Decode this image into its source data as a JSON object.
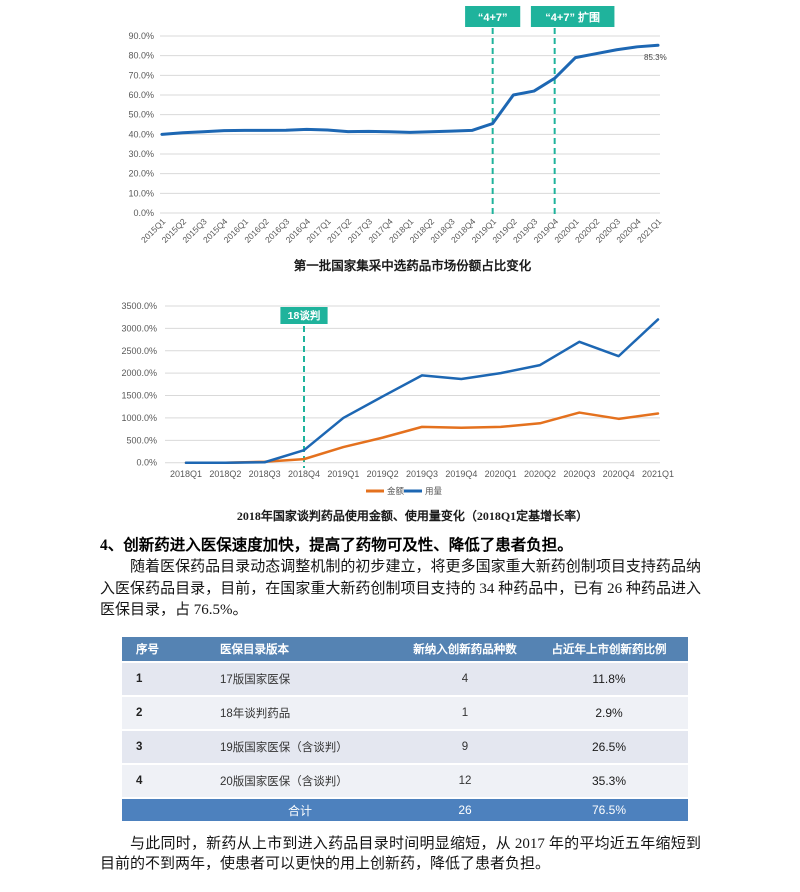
{
  "colors": {
    "accent_green": "#1fb39c",
    "line_blue": "#1d67b3",
    "line_orange": "#e4711e",
    "grid": "#d9d9d9",
    "axis_text": "#595959",
    "table_header_bg": "#5583b3",
    "table_total_bg": "#4d81be",
    "row_odd": "#e4e7f0",
    "row_even": "#eff1f6"
  },
  "chart_data": [
    {
      "type": "line",
      "title": "第一批国家集采中选药品市场份额占比变化",
      "categories": [
        "2015Q1",
        "2015Q2",
        "2015Q3",
        "2015Q4",
        "2016Q1",
        "2016Q2",
        "2016Q3",
        "2016Q4",
        "2017Q1",
        "2017Q2",
        "2017Q3",
        "2017Q4",
        "2018Q1",
        "2018Q2",
        "2018Q3",
        "2018Q4",
        "2019Q1",
        "2019Q2",
        "2019Q3",
        "2019Q4",
        "2020Q1",
        "2020Q2",
        "2020Q3",
        "2020Q4",
        "2021Q1"
      ],
      "series": [
        {
          "name": "中选药品市场份额",
          "color": "#1d67b3",
          "values": [
            40.0,
            40.8,
            41.3,
            41.9,
            42.0,
            42.0,
            42.1,
            42.5,
            42.2,
            41.4,
            41.5,
            41.3,
            41.0,
            41.3,
            41.6,
            42.0,
            45.5,
            60.0,
            62.0,
            68.5,
            79.0,
            81.0,
            83.0,
            84.5,
            85.3
          ]
        }
      ],
      "ylim": [
        0,
        90
      ],
      "ytick_step": 10,
      "grid": true,
      "legend": "none",
      "end_label": "85.3%",
      "annotations": [
        {
          "label": "“4+7”",
          "at": "2019Q1"
        },
        {
          "label": "“4+7” 扩围",
          "at": "2019Q4"
        }
      ]
    },
    {
      "type": "line",
      "title": "2018年国家谈判药品使用金额、使用量变化（2018Q1定基增长率）",
      "categories": [
        "2018Q1",
        "2018Q2",
        "2018Q3",
        "2018Q4",
        "2019Q1",
        "2019Q2",
        "2019Q3",
        "2019Q4",
        "2020Q1",
        "2020Q2",
        "2020Q3",
        "2020Q4",
        "2021Q1"
      ],
      "series": [
        {
          "name": "金额",
          "color": "#e4711e",
          "values": [
            0,
            0,
            20,
            80,
            350,
            560,
            800,
            780,
            800,
            880,
            1120,
            980,
            1100
          ]
        },
        {
          "name": "用量",
          "color": "#1d67b3",
          "values": [
            0,
            0,
            10,
            280,
            1000,
            1480,
            1950,
            1870,
            2000,
            2180,
            2700,
            2380,
            3200
          ]
        }
      ],
      "ylim": [
        0,
        3500
      ],
      "ytick_step": 500,
      "grid": true,
      "legend": "bottom",
      "annotations": [
        {
          "label": "18谈判",
          "at": "2018Q4"
        }
      ]
    }
  ],
  "section": {
    "heading": "4、创新药进入医保速度加快，提高了药物可及性、降低了患者负担。",
    "paragraph1": "随着医保药品目录动态调整机制的初步建立，将更多国家重大新药创制项目支持药品纳入医保药品目录，目前，在国家重大新药创制项目支持的 34 种药品中，已有 26 种药品进入医保目录，占 76.5%。",
    "paragraph2": "与此同时，新药从上市到进入药品目录时间明显缩短，从 2017 年的平均近五年缩短到目前的不到两年，使患者可以更快的用上创新药，降低了患者负担。"
  },
  "table": {
    "headers": [
      "序号",
      "医保目录版本",
      "新纳入创新药品种数",
      "占近年上市创新药比例"
    ],
    "rows": [
      [
        "1",
        "17版国家医保",
        "4",
        "11.8%"
      ],
      [
        "2",
        "18年谈判药品",
        "1",
        "2.9%"
      ],
      [
        "3",
        "19版国家医保（含谈判）",
        "9",
        "26.5%"
      ],
      [
        "4",
        "20版国家医保（含谈判）",
        "12",
        "35.3%"
      ]
    ],
    "total": [
      "",
      "合计",
      "26",
      "76.5%"
    ]
  }
}
